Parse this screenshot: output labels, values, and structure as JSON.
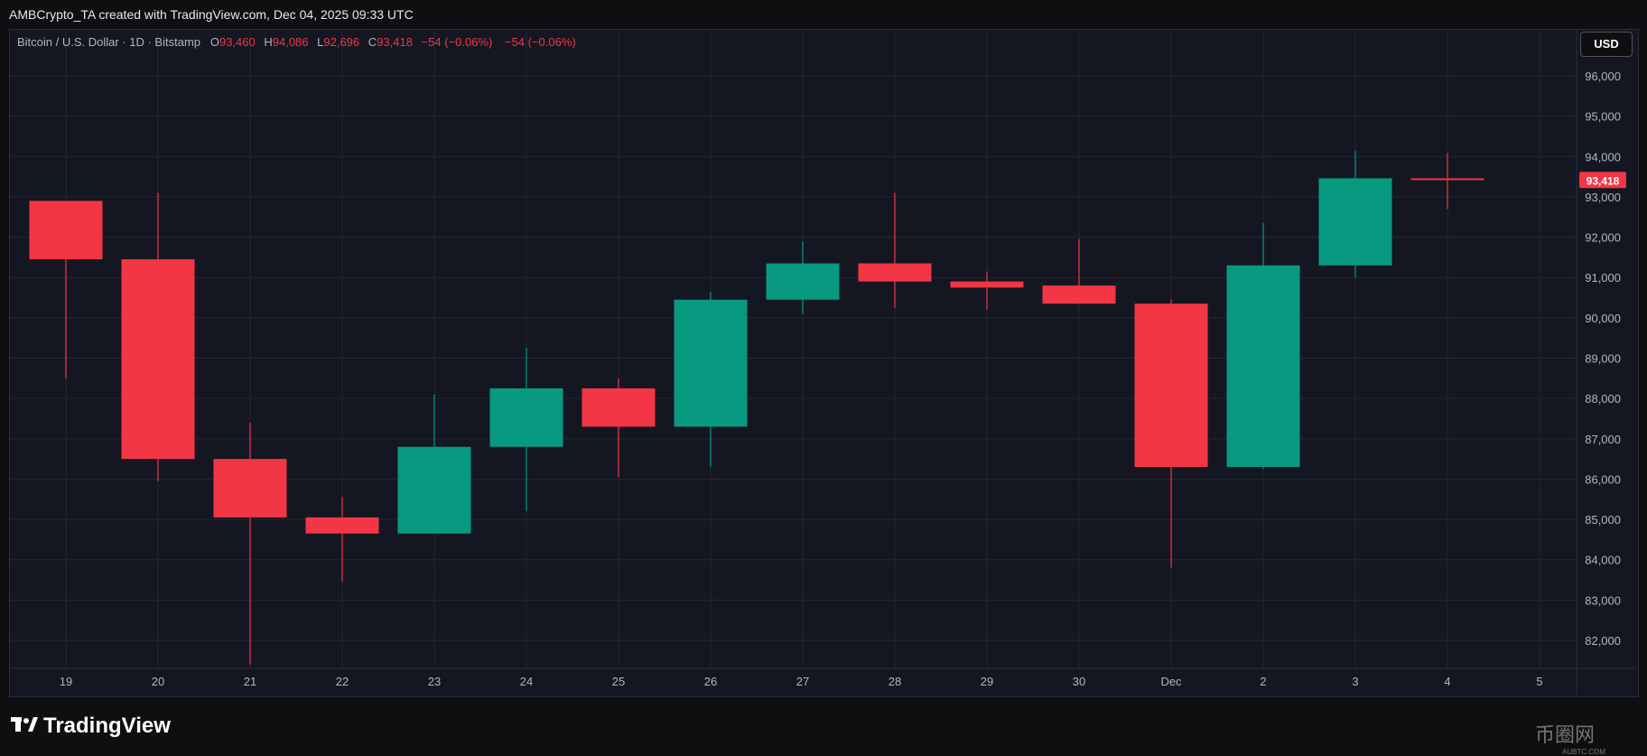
{
  "attribution": "AMBCrypto_TA created with TradingView.com, Dec 04, 2025 09:33 UTC",
  "legend": {
    "symbol": "Bitcoin / U.S. Dollar · 1D · Bitstamp",
    "o_label": "O",
    "o_value": "93,460",
    "h_label": "H",
    "h_value": "94,086",
    "l_label": "L",
    "l_value": "92,696",
    "c_label": "C",
    "c_value": "93,418",
    "change": "−54 (−0.06%)",
    "change2": "−54 (−0.06%)"
  },
  "currency": "USD",
  "brand": "TradingView",
  "watermark": {
    "main": "币圈网",
    "sub": "AUBTC.COM"
  },
  "colors": {
    "up": "#089981",
    "down": "#f23645",
    "grid": "#242733",
    "axis_text": "#b2b5be",
    "bg": "#141722"
  },
  "chart_data": {
    "type": "candlestick",
    "x_labels": [
      "19",
      "20",
      "21",
      "22",
      "23",
      "24",
      "25",
      "26",
      "27",
      "28",
      "29",
      "30",
      "Dec",
      "2",
      "3",
      "4",
      "5"
    ],
    "y_ticks": [
      82000,
      83000,
      84000,
      85000,
      86000,
      87000,
      88000,
      89000,
      90000,
      91000,
      92000,
      93000,
      94000,
      95000,
      96000
    ],
    "y_tick_labels": [
      "82,000",
      "83,000",
      "84,000",
      "85,000",
      "86,000",
      "87,000",
      "88,000",
      "89,000",
      "90,000",
      "91,000",
      "92,000",
      "93,000",
      "94,000",
      "95,000",
      "96,000"
    ],
    "ylim": [
      81400,
      97000
    ],
    "last_price_label": "93,418",
    "last_price": 93418,
    "candles": [
      {
        "x": "19",
        "open": 92900,
        "high": 92900,
        "low": 88500,
        "close": 91450
      },
      {
        "x": "20",
        "open": 91450,
        "high": 93100,
        "low": 85950,
        "close": 86500
      },
      {
        "x": "21",
        "open": 86500,
        "high": 87400,
        "low": 81400,
        "close": 85050
      },
      {
        "x": "22",
        "open": 85050,
        "high": 85550,
        "low": 83450,
        "close": 84650
      },
      {
        "x": "23",
        "open": 84650,
        "high": 88100,
        "low": 84650,
        "close": 86800
      },
      {
        "x": "24",
        "open": 86800,
        "high": 89250,
        "low": 85200,
        "close": 88250
      },
      {
        "x": "25",
        "open": 88250,
        "high": 88500,
        "low": 86050,
        "close": 87300
      },
      {
        "x": "26",
        "open": 87300,
        "high": 90650,
        "low": 86300,
        "close": 90450
      },
      {
        "x": "27",
        "open": 90450,
        "high": 91900,
        "low": 90100,
        "close": 91350
      },
      {
        "x": "28",
        "open": 91350,
        "high": 93100,
        "low": 90250,
        "close": 90900
      },
      {
        "x": "29",
        "open": 90900,
        "high": 91150,
        "low": 90200,
        "close": 90750
      },
      {
        "x": "30",
        "open": 90800,
        "high": 91950,
        "low": 90350,
        "close": 90350
      },
      {
        "x": "Dec",
        "open": 90350,
        "high": 90450,
        "low": 83800,
        "close": 86300
      },
      {
        "x": "2",
        "open": 86300,
        "high": 92350,
        "low": 86250,
        "close": 91300
      },
      {
        "x": "3",
        "open": 91300,
        "high": 94150,
        "low": 91000,
        "close": 93460
      },
      {
        "x": "4",
        "open": 93460,
        "high": 94086,
        "low": 92696,
        "close": 93418
      }
    ]
  }
}
